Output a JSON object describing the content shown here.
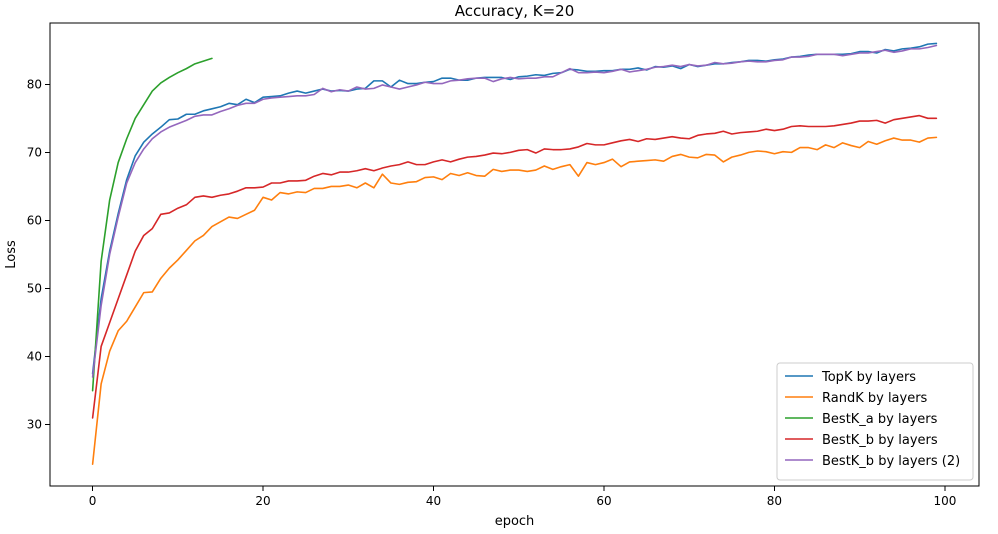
{
  "chart_data": {
    "type": "line",
    "title": "Accuracy, K=20",
    "xlabel": "epoch",
    "ylabel": "Loss",
    "xlim": [
      -5,
      104
    ],
    "ylim": [
      21,
      89
    ],
    "xticks": [
      0,
      20,
      40,
      60,
      80,
      100
    ],
    "yticks": [
      30,
      40,
      50,
      60,
      70,
      80
    ],
    "grid": false,
    "legend_position": "lower-right",
    "series": [
      {
        "name": "TopK by layers",
        "color": "#1f77b4",
        "x": [
          0,
          1,
          2,
          3,
          4,
          5,
          6,
          7,
          8,
          9,
          10,
          11,
          12,
          13,
          14,
          15,
          16,
          17,
          18,
          19,
          20,
          21,
          22,
          23,
          24,
          25,
          26,
          27,
          28,
          29,
          30,
          31,
          32,
          33,
          34,
          35,
          36,
          37,
          38,
          39,
          40,
          41,
          42,
          43,
          44,
          45,
          46,
          47,
          48,
          49,
          50,
          51,
          52,
          53,
          54,
          55,
          56,
          57,
          58,
          59,
          60,
          61,
          62,
          63,
          64,
          65,
          66,
          67,
          68,
          69,
          70,
          71,
          72,
          73,
          74,
          75,
          76,
          77,
          78,
          79,
          80,
          81,
          82,
          83,
          84,
          85,
          86,
          87,
          88,
          89,
          90,
          91,
          92,
          93,
          94,
          95,
          96,
          97,
          98,
          99
        ],
        "y": [
          37.5,
          48.5,
          55.5,
          61,
          66,
          69.5,
          71.5,
          72.7,
          73.7,
          74.8,
          74.9,
          75.6,
          75.6,
          76.1,
          76.4,
          76.7,
          77.2,
          77,
          77.8,
          77.3,
          78.1,
          78.2,
          78.3,
          78.7,
          79,
          78.7,
          79,
          79.3,
          79,
          79.1,
          79,
          79.3,
          79.4,
          80.5,
          80.5,
          79.6,
          80.6,
          80.1,
          80.1,
          80.3,
          80.4,
          80.9,
          80.9,
          80.6,
          80.6,
          80.9,
          81,
          81,
          81,
          80.7,
          81.1,
          81.2,
          81.4,
          81.3,
          81.6,
          81.7,
          82.2,
          82.1,
          81.9,
          81.9,
          82,
          82,
          82.2,
          82.2,
          82.4,
          82.1,
          82.6,
          82.5,
          82.7,
          82.3,
          82.9,
          82.6,
          82.8,
          83,
          83,
          83.2,
          83.3,
          83.5,
          83.5,
          83.4,
          83.6,
          83.7,
          84,
          84.1,
          84.3,
          84.4,
          84.4,
          84.4,
          84.4,
          84.5,
          84.8,
          84.8,
          84.6,
          85.1,
          84.9,
          85.2,
          85.3,
          85.5,
          85.9,
          86
        ]
      },
      {
        "name": "RandK by layers",
        "color": "#ff7f0e",
        "x": [
          0,
          1,
          2,
          3,
          4,
          5,
          6,
          7,
          8,
          9,
          10,
          11,
          12,
          13,
          14,
          15,
          16,
          17,
          18,
          19,
          20,
          21,
          22,
          23,
          24,
          25,
          26,
          27,
          28,
          29,
          30,
          31,
          32,
          33,
          34,
          35,
          36,
          37,
          38,
          39,
          40,
          41,
          42,
          43,
          44,
          45,
          46,
          47,
          48,
          49,
          50,
          51,
          52,
          53,
          54,
          55,
          56,
          57,
          58,
          59,
          60,
          61,
          62,
          63,
          64,
          65,
          66,
          67,
          68,
          69,
          70,
          71,
          72,
          73,
          74,
          75,
          76,
          77,
          78,
          79,
          80,
          81,
          82,
          83,
          84,
          85,
          86,
          87,
          88,
          89,
          90,
          91,
          92,
          93,
          94,
          95,
          96,
          97,
          98,
          99
        ],
        "y": [
          24.2,
          36,
          40.8,
          43.8,
          45.2,
          47.3,
          49.4,
          49.5,
          51.5,
          53,
          54.2,
          55.6,
          57,
          57.8,
          59.1,
          59.8,
          60.5,
          60.3,
          60.9,
          61.5,
          63.4,
          63,
          64.1,
          63.9,
          64.2,
          64.1,
          64.7,
          64.7,
          65,
          65,
          65.2,
          64.8,
          65.5,
          64.8,
          66.8,
          65.5,
          65.3,
          65.6,
          65.7,
          66.3,
          66.4,
          66,
          66.9,
          66.6,
          67,
          66.6,
          66.5,
          67.5,
          67.2,
          67.4,
          67.4,
          67.2,
          67.4,
          68,
          67.5,
          67.9,
          68.2,
          66.5,
          68.5,
          68.2,
          68.5,
          69,
          67.9,
          68.6,
          68.7,
          68.8,
          68.9,
          68.7,
          69.4,
          69.7,
          69.3,
          69.2,
          69.7,
          69.6,
          68.6,
          69.3,
          69.6,
          70,
          70.2,
          70.1,
          69.8,
          70.1,
          70,
          70.7,
          70.7,
          70.4,
          71.1,
          70.7,
          71.4,
          71,
          70.7,
          71.6,
          71.2,
          71.7,
          72.1,
          71.8,
          71.8,
          71.5,
          72.1,
          72.2
        ]
      },
      {
        "name": "BestK_a by layers",
        "color": "#2ca02c",
        "x": [
          0,
          1,
          2,
          3,
          4,
          5,
          6,
          7,
          8,
          9,
          10,
          11,
          12,
          13,
          14
        ],
        "y": [
          35,
          54,
          63,
          68.5,
          72,
          75,
          77,
          79,
          80.2,
          81,
          81.7,
          82.3,
          83,
          83.4,
          83.8
        ]
      },
      {
        "name": "BestK_b by layers",
        "color": "#d62728",
        "x": [
          0,
          1,
          2,
          3,
          4,
          5,
          6,
          7,
          8,
          9,
          10,
          11,
          12,
          13,
          14,
          15,
          16,
          17,
          18,
          19,
          20,
          21,
          22,
          23,
          24,
          25,
          26,
          27,
          28,
          29,
          30,
          31,
          32,
          33,
          34,
          35,
          36,
          37,
          38,
          39,
          40,
          41,
          42,
          43,
          44,
          45,
          46,
          47,
          48,
          49,
          50,
          51,
          52,
          53,
          54,
          55,
          56,
          57,
          58,
          59,
          60,
          61,
          62,
          63,
          64,
          65,
          66,
          67,
          68,
          69,
          70,
          71,
          72,
          73,
          74,
          75,
          76,
          77,
          78,
          79,
          80,
          81,
          82,
          83,
          84,
          85,
          86,
          87,
          88,
          89,
          90,
          91,
          92,
          93,
          94,
          95,
          96,
          97,
          98,
          99
        ],
        "y": [
          31,
          41.5,
          45,
          48.5,
          52,
          55.5,
          57.8,
          58.8,
          60.9,
          61.1,
          61.8,
          62.3,
          63.4,
          63.6,
          63.4,
          63.7,
          63.9,
          64.3,
          64.8,
          64.8,
          64.9,
          65.5,
          65.5,
          65.8,
          65.8,
          65.9,
          66.5,
          66.9,
          66.7,
          67.1,
          67.1,
          67.3,
          67.6,
          67.3,
          67.7,
          68,
          68.2,
          68.6,
          68.2,
          68.2,
          68.6,
          68.9,
          68.6,
          69,
          69.3,
          69.4,
          69.6,
          69.9,
          69.8,
          70,
          70.3,
          70.4,
          69.9,
          70.5,
          70.4,
          70.4,
          70.5,
          70.8,
          71.3,
          71.1,
          71.1,
          71.4,
          71.7,
          71.9,
          71.6,
          72,
          71.9,
          72.1,
          72.3,
          72.1,
          72,
          72.5,
          72.7,
          72.8,
          73.1,
          72.7,
          72.9,
          73,
          73.1,
          73.4,
          73.2,
          73.4,
          73.8,
          73.9,
          73.8,
          73.8,
          73.8,
          73.9,
          74.1,
          74.3,
          74.6,
          74.6,
          74.7,
          74.3,
          74.8,
          75,
          75.2,
          75.4,
          75,
          75
        ]
      },
      {
        "name": "BestK_b by layers (2)",
        "color": "#9467bd",
        "x": [
          0,
          1,
          2,
          3,
          4,
          5,
          6,
          7,
          8,
          9,
          10,
          11,
          12,
          13,
          14,
          15,
          16,
          17,
          18,
          19,
          20,
          21,
          22,
          23,
          24,
          25,
          26,
          27,
          28,
          29,
          30,
          31,
          32,
          33,
          34,
          35,
          36,
          37,
          38,
          39,
          40,
          41,
          42,
          43,
          44,
          45,
          46,
          47,
          48,
          49,
          50,
          51,
          52,
          53,
          54,
          55,
          56,
          57,
          58,
          59,
          60,
          61,
          62,
          63,
          64,
          65,
          66,
          67,
          68,
          69,
          70,
          71,
          72,
          73,
          74,
          75,
          76,
          77,
          78,
          79,
          80,
          81,
          82,
          83,
          84,
          85,
          86,
          87,
          88,
          89,
          90,
          91,
          92,
          93,
          94,
          95,
          96,
          97,
          98,
          99
        ],
        "y": [
          37,
          47.5,
          55,
          60.5,
          65.5,
          68.5,
          70.5,
          72,
          73,
          73.7,
          74.2,
          74.7,
          75.3,
          75.5,
          75.5,
          76,
          76.4,
          76.9,
          77.2,
          77.2,
          77.8,
          78,
          78.1,
          78.2,
          78.3,
          78.3,
          78.5,
          79.4,
          78.9,
          79.2,
          79,
          79.6,
          79.3,
          79.4,
          79.9,
          79.6,
          79.3,
          79.6,
          79.9,
          80.3,
          80.1,
          80.1,
          80.5,
          80.6,
          80.8,
          80.9,
          80.9,
          80.4,
          80.8,
          81,
          80.8,
          80.9,
          80.9,
          81.1,
          81.1,
          81.7,
          82.3,
          81.7,
          81.7,
          81.8,
          81.7,
          81.9,
          82.2,
          81.8,
          82,
          82.2,
          82.5,
          82.6,
          82.8,
          82.6,
          82.9,
          82.7,
          82.8,
          83.2,
          83,
          83.1,
          83.3,
          83.4,
          83.3,
          83.3,
          83.5,
          83.6,
          84,
          84,
          84.1,
          84.4,
          84.4,
          84.4,
          84.2,
          84.4,
          84.6,
          84.6,
          84.8,
          85,
          84.7,
          84.9,
          85.2,
          85.2,
          85.4,
          85.7
        ]
      }
    ]
  }
}
